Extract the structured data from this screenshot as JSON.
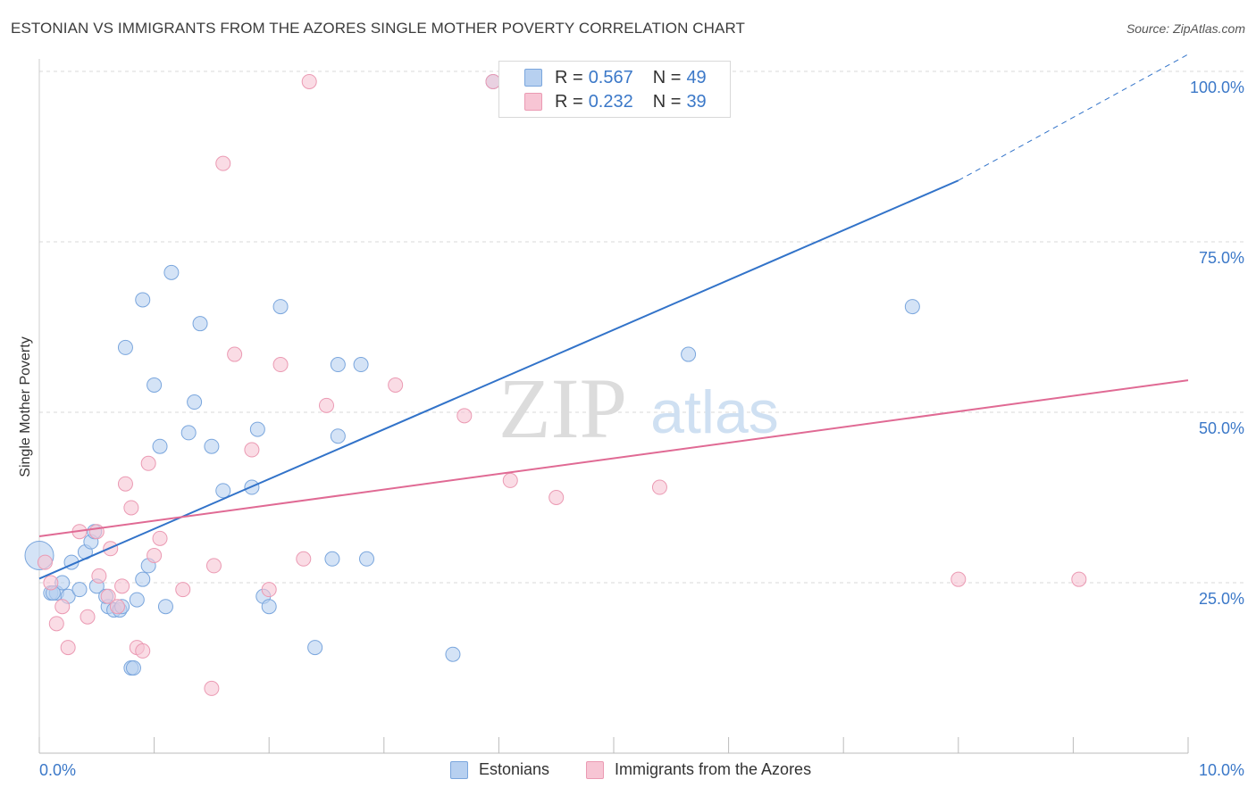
{
  "header": {
    "title": "ESTONIAN VS IMMIGRANTS FROM THE AZORES SINGLE MOTHER POVERTY CORRELATION CHART",
    "source": "Source: ZipAtlas.com"
  },
  "watermark": {
    "zip": "ZIP",
    "atlas": "atlas"
  },
  "legend": {
    "series1": {
      "r_label": "R = ",
      "r_value": "0.567",
      "n_label": "N = ",
      "n_value": "49"
    },
    "series2": {
      "r_label": "R = ",
      "r_value": "0.232",
      "n_label": "N = ",
      "n_value": "39"
    }
  },
  "bottom_legend": {
    "series1": "Estonians",
    "series2": "Immigrants from the Azores"
  },
  "colors": {
    "blue_fill": "#b7d0f0",
    "blue_stroke": "#7aa6dd",
    "blue_line": "#3273c9",
    "pink_fill": "#f7c5d4",
    "pink_stroke": "#eb9ab3",
    "pink_line": "#e06a94",
    "tick_label": "#3b78c8",
    "grid": "#d9d9d9"
  },
  "chart_data": {
    "type": "scatter",
    "title": "ESTONIAN VS IMMIGRANTS FROM THE AZORES SINGLE MOTHER POVERTY CORRELATION CHART",
    "xlabel": "",
    "ylabel": "Single Mother Poverty",
    "xlim": [
      0,
      10
    ],
    "ylim": [
      0,
      100
    ],
    "x_tick_labels": [
      "0.0%",
      "10.0%"
    ],
    "y_tick_labels": [
      "25.0%",
      "50.0%",
      "75.0%",
      "100.0%"
    ],
    "y_ticks": [
      25,
      50,
      75,
      100
    ],
    "grid": true,
    "series": [
      {
        "name": "Estonians",
        "R": 0.567,
        "N": 49,
        "trend": {
          "x0": 0.0,
          "y0": 25.6,
          "x1": 8.0,
          "y1": 84.0,
          "dashed_to_x": 10.0,
          "dashed_to_y": 102.5
        },
        "points": [
          [
            0.0,
            29.0
          ],
          [
            0.1,
            23.5
          ],
          [
            0.15,
            23.5
          ],
          [
            0.2,
            25.0
          ],
          [
            0.25,
            23.0
          ],
          [
            0.28,
            28.0
          ],
          [
            0.35,
            24.0
          ],
          [
            0.4,
            29.5
          ],
          [
            0.45,
            31.0
          ],
          [
            0.48,
            32.5
          ],
          [
            0.5,
            24.5
          ],
          [
            0.6,
            21.5
          ],
          [
            0.65,
            21.0
          ],
          [
            0.7,
            21.0
          ],
          [
            0.72,
            21.5
          ],
          [
            0.75,
            59.5
          ],
          [
            0.8,
            12.5
          ],
          [
            0.82,
            12.5
          ],
          [
            0.85,
            22.5
          ],
          [
            0.9,
            25.5
          ],
          [
            0.95,
            27.5
          ],
          [
            1.0,
            54.0
          ],
          [
            1.05,
            45.0
          ],
          [
            1.1,
            21.5
          ],
          [
            1.15,
            70.5
          ],
          [
            1.3,
            47.0
          ],
          [
            1.35,
            51.5
          ],
          [
            1.4,
            63.0
          ],
          [
            1.5,
            45.0
          ],
          [
            1.6,
            38.5
          ],
          [
            1.85,
            39.0
          ],
          [
            1.9,
            47.5
          ],
          [
            1.95,
            23.0
          ],
          [
            2.0,
            21.5
          ],
          [
            2.1,
            65.5
          ],
          [
            2.4,
            15.5
          ],
          [
            2.55,
            28.5
          ],
          [
            2.6,
            46.5
          ],
          [
            2.6,
            57.0
          ],
          [
            2.8,
            57.0
          ],
          [
            2.85,
            28.5
          ],
          [
            3.6,
            14.5
          ],
          [
            3.95,
            98.5
          ],
          [
            5.15,
            98.5
          ],
          [
            5.65,
            58.5
          ],
          [
            7.6,
            65.5
          ],
          [
            0.9,
            66.5
          ],
          [
            0.58,
            23.0
          ],
          [
            0.12,
            23.5
          ]
        ],
        "sizes_note": "one larger point at x=0.0"
      },
      {
        "name": "Immigrants from the Azores",
        "R": 0.232,
        "N": 39,
        "trend": {
          "x0": 0.0,
          "y0": 31.8,
          "x1": 10.0,
          "y1": 54.7
        },
        "points": [
          [
            0.05,
            28.0
          ],
          [
            0.1,
            25.0
          ],
          [
            0.15,
            19.0
          ],
          [
            0.2,
            21.5
          ],
          [
            0.25,
            15.5
          ],
          [
            0.35,
            32.5
          ],
          [
            0.42,
            20.0
          ],
          [
            0.5,
            32.5
          ],
          [
            0.52,
            26.0
          ],
          [
            0.6,
            23.0
          ],
          [
            0.62,
            30.0
          ],
          [
            0.68,
            21.5
          ],
          [
            0.72,
            24.5
          ],
          [
            0.75,
            39.5
          ],
          [
            0.8,
            36.0
          ],
          [
            0.85,
            15.5
          ],
          [
            0.9,
            15.0
          ],
          [
            0.95,
            42.5
          ],
          [
            1.0,
            29.0
          ],
          [
            1.05,
            31.5
          ],
          [
            1.25,
            24.0
          ],
          [
            1.5,
            9.5
          ],
          [
            1.52,
            27.5
          ],
          [
            1.6,
            86.5
          ],
          [
            1.7,
            58.5
          ],
          [
            1.85,
            44.5
          ],
          [
            2.0,
            24.0
          ],
          [
            2.1,
            57.0
          ],
          [
            2.3,
            28.5
          ],
          [
            2.35,
            98.5
          ],
          [
            2.5,
            51.0
          ],
          [
            3.1,
            54.0
          ],
          [
            3.7,
            49.5
          ],
          [
            4.1,
            40.0
          ],
          [
            4.5,
            37.5
          ],
          [
            5.4,
            39.0
          ],
          [
            8.0,
            25.5
          ],
          [
            9.05,
            25.5
          ],
          [
            3.95,
            98.5
          ]
        ]
      }
    ]
  }
}
